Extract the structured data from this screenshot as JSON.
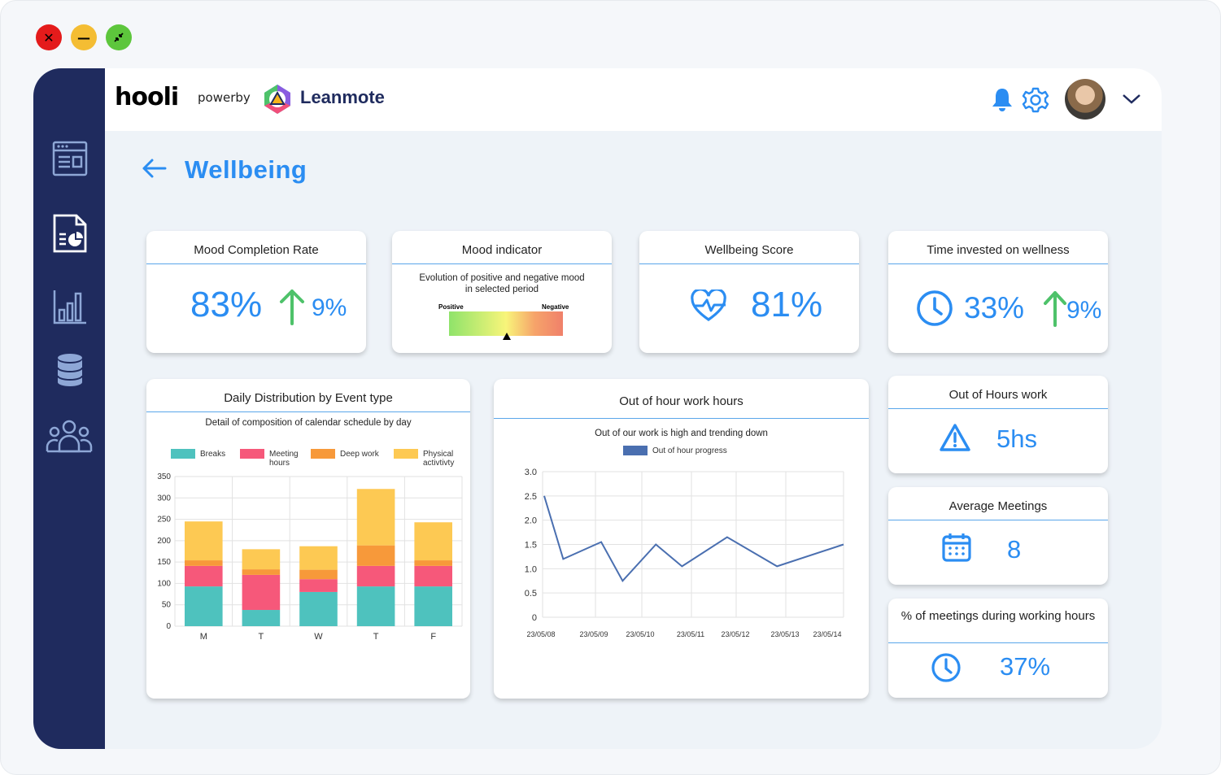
{
  "header": {
    "logo_text": "hooli",
    "powered_by": "powerby",
    "brand": "Leanmote"
  },
  "page": {
    "title": "Wellbeing"
  },
  "kpis": {
    "mood_completion": {
      "title": "Mood Completion Rate",
      "value": "83%",
      "delta": "9%"
    },
    "mood_indicator": {
      "title": "Mood indicator",
      "subtitle": "Evolution of positive and negative mood in selected period",
      "left_label": "Positive",
      "right_label": "Negative",
      "level": 0.5
    },
    "wellbeing_score": {
      "title": "Wellbeing Score",
      "value": "81%"
    },
    "time_wellness": {
      "title": "Time invested on wellness",
      "value": "33%",
      "delta": "9%"
    },
    "out_of_hours": {
      "title": "Out of Hours work",
      "value": "5hs"
    },
    "avg_meetings": {
      "title": "Average Meetings",
      "value": "8"
    },
    "meetings_working": {
      "title": "% of meetings during working hours",
      "value": "37%"
    }
  },
  "charts": {
    "daily": {
      "title": "Daily Distribution by Event type",
      "subtitle": "Detail of composition of calendar schedule by day",
      "legend": [
        {
          "name": "Breaks",
          "color": "#4ec2be"
        },
        {
          "name": "Meeting hours",
          "color": "#f6587a"
        },
        {
          "name": "Deep work",
          "color": "#f7993a"
        },
        {
          "name": "Physical activtivty",
          "color": "#fdc953"
        }
      ]
    },
    "ooh": {
      "title": "Out of hour work hours",
      "subtitle": "Out of our work is high and trending down",
      "legend": "Out of hour progress"
    }
  },
  "chart_data": [
    {
      "type": "bar",
      "stacked": true,
      "categories": [
        "M",
        "T",
        "W",
        "T",
        "F"
      ],
      "series": [
        {
          "name": "Breaks",
          "color": "#4ec2be",
          "values": [
            93,
            38,
            80,
            93,
            93
          ]
        },
        {
          "name": "Meeting hours",
          "color": "#f6587a",
          "values": [
            48,
            82,
            30,
            48,
            48
          ]
        },
        {
          "name": "Deep work",
          "color": "#f7993a",
          "values": [
            13,
            13,
            22,
            48,
            13
          ]
        },
        {
          "name": "Physical activtivty",
          "color": "#fdc953",
          "values": [
            91,
            47,
            55,
            132,
            89
          ]
        }
      ],
      "yticks": [
        0,
        50,
        100,
        150,
        200,
        250,
        300,
        350
      ],
      "ylim": [
        0,
        350
      ],
      "grid": true,
      "legend_position": "top"
    },
    {
      "type": "line",
      "x": [
        "23/05/08",
        "23/05/09",
        "23/05/10",
        "23/05/11",
        "23/05/12",
        "23/05/13",
        "23/05/14"
      ],
      "series": [
        {
          "name": "Out of hour progress",
          "color": "#4a6fb0",
          "points": [
            [
              0,
              2.5
            ],
            [
              0.4,
              1.2
            ],
            [
              1.2,
              1.55
            ],
            [
              1.65,
              0.75
            ],
            [
              2.35,
              1.5
            ],
            [
              2.9,
              1.05
            ],
            [
              3.85,
              1.65
            ],
            [
              4.9,
              1.05
            ],
            [
              6.3,
              1.5
            ]
          ]
        }
      ],
      "yticks": [
        "0",
        "0.5",
        "1.0",
        "1.5",
        "2.0",
        "2.5",
        "3.0"
      ],
      "ylim": [
        0,
        3.0
      ],
      "grid": true,
      "legend_position": "top"
    }
  ]
}
